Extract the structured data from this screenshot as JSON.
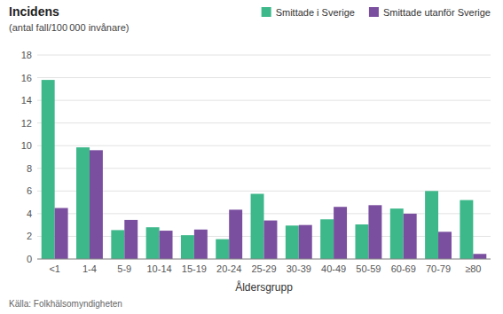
{
  "chart_data": {
    "type": "bar",
    "title": "Incidens",
    "subtitle": "(antal fall/100 000 invånare)",
    "x_label": "Åldersgrupp",
    "source": "Källa:  Folkhälsomyndigheten",
    "categories": [
      "<1",
      "1-4",
      "5-9",
      "10-14",
      "15-19",
      "20-24",
      "25-29",
      "30-39",
      "40-49",
      "50-59",
      "60-69",
      "70-79",
      "≥80"
    ],
    "series": [
      {
        "name": "Smittade i Sverige",
        "color": "#3cb88a",
        "values": [
          15.8,
          9.85,
          2.55,
          2.8,
          2.1,
          1.75,
          5.75,
          2.95,
          3.5,
          3.05,
          4.45,
          6.0,
          5.2
        ]
      },
      {
        "name": "Smittade utanför Sverige",
        "color": "#7b4fa0",
        "values": [
          4.5,
          9.6,
          3.45,
          2.5,
          2.6,
          4.35,
          3.4,
          3.0,
          4.6,
          4.75,
          4.0,
          2.4,
          0.45
        ]
      }
    ],
    "ylim": [
      0,
      18
    ],
    "yticks": [
      0,
      2,
      4,
      6,
      8,
      10,
      12,
      14,
      16,
      18
    ],
    "grid": true,
    "legend": "top"
  }
}
